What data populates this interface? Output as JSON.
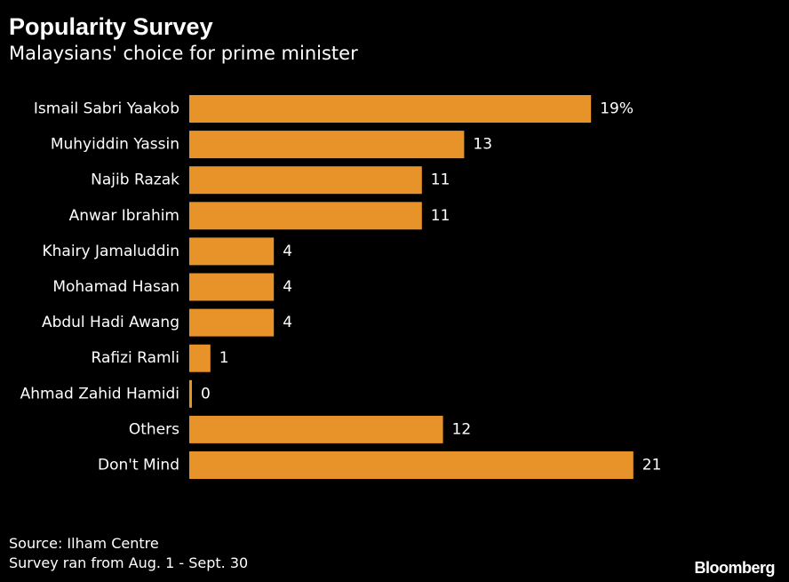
{
  "header": {
    "title": "Popularity Survey",
    "subtitle": "Malaysians' choice for prime minister"
  },
  "footer": {
    "source": "Source: Ilham Centre",
    "note": "Survey ran from Aug. 1 - Sept. 30",
    "brand": "Bloomberg"
  },
  "colors": {
    "background": "#000000",
    "bar": "#e8932a",
    "text": "#ffffff"
  },
  "chart_data": {
    "type": "bar",
    "orientation": "horizontal",
    "title": "Popularity Survey",
    "subtitle": "Malaysians' choice for prime minister",
    "unit": "%",
    "categories": [
      "Ismail Sabri Yaakob",
      "Muhyiddin Yassin",
      "Najib Razak",
      "Anwar Ibrahim",
      "Khairy Jamaluddin",
      "Mohamad Hasan",
      "Abdul Hadi Awang",
      "Rafizi Ramli",
      "Ahmad Zahid Hamidi",
      "Others",
      "Don't Mind"
    ],
    "values": [
      19,
      13,
      11,
      11,
      4,
      4,
      4,
      1,
      0,
      12,
      21
    ],
    "value_labels": [
      "19%",
      "13",
      "11",
      "11",
      "4",
      "4",
      "4",
      "1",
      "0",
      "12",
      "21"
    ],
    "xlim": [
      0,
      21
    ],
    "grid": false,
    "legend": "none"
  }
}
